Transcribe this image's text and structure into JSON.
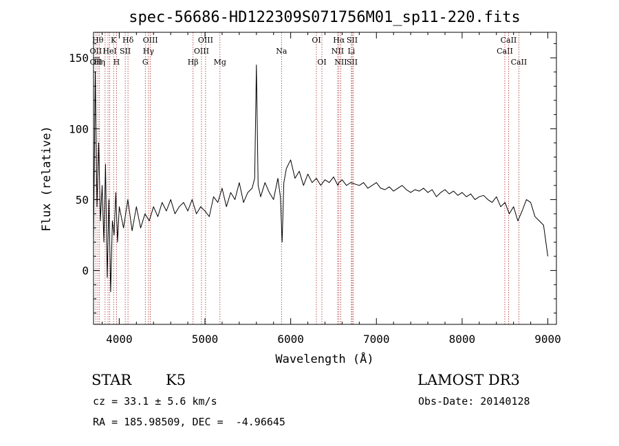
{
  "chart_data": {
    "type": "line",
    "title": "spec-56686-HD122309S071756M01_sp11-220.fits",
    "xlabel": "Wavelength (Å)",
    "ylabel": "Flux (relative)",
    "xlim": [
      3700,
      9100
    ],
    "ylim": [
      -38,
      168
    ],
    "xticks": [
      4000,
      5000,
      6000,
      7000,
      8000,
      9000
    ],
    "yticks": [
      0,
      50,
      100,
      150
    ],
    "grid": false,
    "line_color": "#000000",
    "marker_color": "#aa2222",
    "series": [
      {
        "x": [
          3700,
          3720,
          3740,
          3760,
          3780,
          3800,
          3820,
          3840,
          3860,
          3880,
          3900,
          3920,
          3940,
          3960,
          3980,
          4000,
          4050,
          4100,
          4150,
          4200,
          4250,
          4300,
          4350,
          4400,
          4450,
          4500,
          4550,
          4600,
          4650,
          4700,
          4750,
          4800,
          4850,
          4900,
          4950,
          5000,
          5050,
          5100,
          5150,
          5200,
          5250,
          5300,
          5350,
          5400,
          5450,
          5500,
          5550,
          5580,
          5600,
          5620,
          5650,
          5700,
          5750,
          5800,
          5850,
          5880,
          5900,
          5920,
          5950,
          6000,
          6050,
          6100,
          6150,
          6200,
          6250,
          6300,
          6350,
          6400,
          6450,
          6500,
          6550,
          6563,
          6600,
          6650,
          6700,
          6750,
          6800,
          6850,
          6900,
          6950,
          7000,
          7050,
          7100,
          7150,
          7200,
          7250,
          7300,
          7350,
          7400,
          7450,
          7500,
          7550,
          7600,
          7650,
          7700,
          7750,
          7800,
          7850,
          7900,
          7950,
          8000,
          8050,
          8100,
          8150,
          8200,
          8250,
          8300,
          8350,
          8400,
          8450,
          8500,
          8550,
          8600,
          8650,
          8700,
          8750,
          8800,
          8850,
          8900,
          8950,
          9000
        ],
        "y": [
          20,
          140,
          45,
          90,
          35,
          60,
          20,
          75,
          -5,
          50,
          -15,
          35,
          25,
          55,
          20,
          45,
          30,
          50,
          28,
          45,
          30,
          40,
          35,
          45,
          38,
          48,
          42,
          50,
          40,
          45,
          48,
          42,
          50,
          40,
          45,
          42,
          38,
          52,
          48,
          58,
          45,
          55,
          50,
          62,
          48,
          55,
          58,
          65,
          145,
          60,
          52,
          62,
          55,
          50,
          65,
          52,
          20,
          62,
          72,
          78,
          65,
          70,
          60,
          68,
          62,
          65,
          60,
          64,
          62,
          66,
          60,
          62,
          64,
          60,
          62,
          61,
          60,
          62,
          58,
          60,
          62,
          58,
          57,
          59,
          56,
          58,
          60,
          57,
          55,
          57,
          56,
          58,
          55,
          57,
          52,
          55,
          57,
          54,
          56,
          53,
          55,
          52,
          54,
          50,
          52,
          53,
          50,
          48,
          52,
          45,
          48,
          40,
          45,
          35,
          42,
          50,
          48,
          38,
          35,
          32,
          10
        ],
        "name": ""
      }
    ],
    "lines": [
      {
        "wl": 3727,
        "labels": [
          "",
          "OII",
          "OII"
        ]
      },
      {
        "wl": 3750,
        "labels": [
          "Hθ",
          "",
          ""
        ]
      },
      {
        "wl": 3770,
        "labels": [
          "",
          "",
          "Hη"
        ]
      },
      {
        "wl": 3835,
        "labels": [
          "",
          "",
          ""
        ]
      },
      {
        "wl": 3869,
        "labels": [
          "",
          "",
          ""
        ]
      },
      {
        "wl": 3889,
        "labels": [
          "",
          "HeI",
          ""
        ]
      },
      {
        "wl": 3934,
        "labels": [
          "K",
          "",
          ""
        ]
      },
      {
        "wl": 3968,
        "labels": [
          "",
          "",
          "H"
        ]
      },
      {
        "wl": 4070,
        "labels": [
          "",
          "SII",
          ""
        ]
      },
      {
        "wl": 4102,
        "labels": [
          "Hδ",
          "",
          ""
        ]
      },
      {
        "wl": 4304,
        "labels": [
          "",
          "",
          "G"
        ]
      },
      {
        "wl": 4341,
        "labels": [
          "",
          "Hγ",
          ""
        ]
      },
      {
        "wl": 4363,
        "labels": [
          "OIII",
          "",
          ""
        ]
      },
      {
        "wl": 4861,
        "labels": [
          "",
          "",
          "Hβ"
        ]
      },
      {
        "wl": 4959,
        "labels": [
          "",
          "OIII",
          ""
        ]
      },
      {
        "wl": 5007,
        "labels": [
          "OIII",
          "",
          ""
        ]
      },
      {
        "wl": 5175,
        "labels": [
          "",
          "",
          "Mg"
        ]
      },
      {
        "wl": 5893,
        "labels": [
          "",
          "Na",
          ""
        ]
      },
      {
        "wl": 6300,
        "labels": [
          "OI",
          "",
          ""
        ]
      },
      {
        "wl": 6364,
        "labels": [
          "",
          "",
          "OI"
        ]
      },
      {
        "wl": 6548,
        "labels": [
          "",
          "NII",
          ""
        ]
      },
      {
        "wl": 6563,
        "labels": [
          "Hα",
          "",
          ""
        ]
      },
      {
        "wl": 6584,
        "labels": [
          "",
          "",
          "NII"
        ]
      },
      {
        "wl": 6708,
        "labels": [
          "",
          "Li",
          ""
        ]
      },
      {
        "wl": 6717,
        "labels": [
          "SII",
          "",
          "SII"
        ]
      },
      {
        "wl": 6731,
        "labels": [
          "",
          "",
          ""
        ]
      },
      {
        "wl": 8498,
        "labels": [
          "",
          "CaII",
          ""
        ]
      },
      {
        "wl": 8542,
        "labels": [
          "CaII",
          "",
          ""
        ]
      },
      {
        "wl": 8662,
        "labels": [
          "",
          "",
          "CaII"
        ]
      }
    ]
  },
  "info": {
    "class": "STAR",
    "subclass": "K5",
    "survey": "LAMOST DR3",
    "cz": "cz = 33.1 ± 5.6 km/s",
    "obs_date": "Obs-Date: 20140128",
    "radec": "RA = 185.98509, DEC =  -4.96645"
  }
}
